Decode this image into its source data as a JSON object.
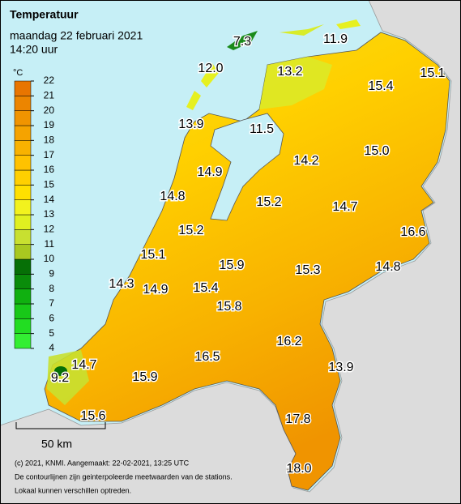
{
  "header": {
    "title": "Temperatuur",
    "date": "maandag 22 februari 2021",
    "time": "14:20 uur"
  },
  "legend": {
    "unit": "°C",
    "ticks": [
      4,
      5,
      6,
      7,
      8,
      9,
      10,
      11,
      12,
      13,
      14,
      15,
      16,
      17,
      18,
      19,
      20,
      21,
      22
    ],
    "colors": [
      "#33ee33",
      "#22dd22",
      "#18c818",
      "#10b010",
      "#0a8c0a",
      "#067006",
      "#a8c820",
      "#c8e030",
      "#e0f020",
      "#f2f21e",
      "#ffe000",
      "#ffd000",
      "#ffc200",
      "#f8b200",
      "#f5a300",
      "#f09400",
      "#ec8500",
      "#e87500"
    ]
  },
  "stations": [
    "7.3",
    "11.9",
    "12.0",
    "13.2",
    "15.4",
    "15.1",
    "13.9",
    "11.5",
    "14.2",
    "15.0",
    "14.9",
    "14.8",
    "15.2",
    "14.7",
    "15.2",
    "16.6",
    "15.1",
    "15.9",
    "15.3",
    "14.8",
    "14.3",
    "14.9",
    "15.4",
    "15.8",
    "16.2",
    "14.7",
    "16.5",
    "13.9",
    "9.2",
    "15.9",
    "15.6",
    "17.8",
    "18.0"
  ],
  "scale": "50 km",
  "footer": [
    "(c) 2021, KNMI. Aangemaakt: 22-02-2021, 13:25 UTC",
    "De contourlijnen zijn geinterpoleerde meetwaarden van de stations.",
    "Lokaal kunnen verschillen optreden."
  ]
}
